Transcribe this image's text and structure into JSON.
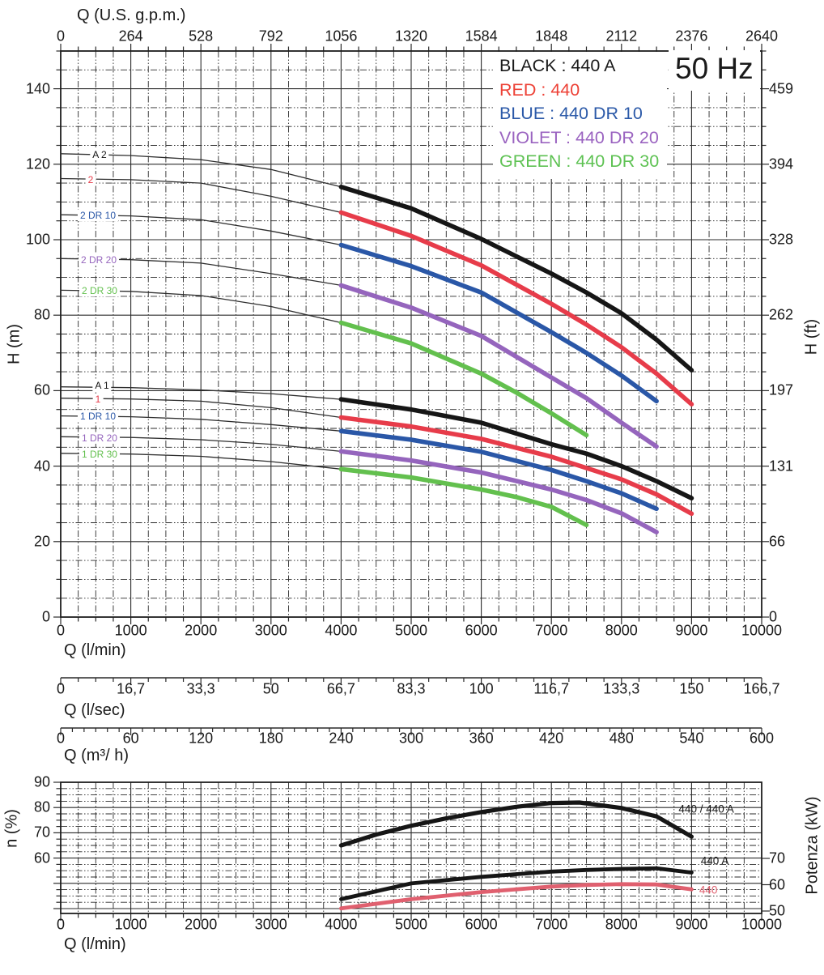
{
  "chart_data": [
    {
      "type": "line",
      "name": "head-capacity curves",
      "axes": {
        "top": {
          "title": "Q (U.S. g.p.m.)",
          "ticks": [
            "0",
            "264",
            "528",
            "792",
            "1056",
            "1320",
            "1584",
            "1848",
            "2112",
            "2376",
            "2640"
          ]
        },
        "bottom": {
          "title": "Q (l/min)",
          "ticks": [
            "0",
            "1000",
            "2000",
            "3000",
            "4000",
            "5000",
            "6000",
            "7000",
            "8000",
            "9000",
            "10000"
          ]
        },
        "left": {
          "title": "H (m)",
          "ticks": [
            "140",
            "120",
            "100",
            "80",
            "60",
            "40",
            "20",
            "0"
          ],
          "min": 0,
          "max": 150
        },
        "right": {
          "title": "H (ft)",
          "ticks": [
            "459",
            "394",
            "328",
            "262",
            "197",
            "131",
            "66",
            "0"
          ]
        },
        "x_min": 0,
        "x_max": 10000
      },
      "legend": {
        "frequency": "50 Hz",
        "entries": [
          {
            "label": "BLACK : 440 A",
            "color": "#1a1a1a"
          },
          {
            "label": "RED : 440",
            "color": "#ed4136"
          },
          {
            "label": "BLUE : 440 DR 10",
            "color": "#2b59a8"
          },
          {
            "label": "VIOLET : 440 DR 20",
            "color": "#9a63c0"
          },
          {
            "label": "GREEN : 440 DR 30",
            "color": "#5ec253"
          }
        ]
      },
      "series": [
        {
          "model": "440 A",
          "label": "A 2",
          "color": "#161616",
          "label_at": [
            554,
            122.5
          ],
          "lead": [
            [
              0,
              122.8
            ],
            [
              1000,
              122.3
            ],
            [
              2000,
              121.2
            ],
            [
              3000,
              118.6
            ],
            [
              4000,
              114
            ]
          ],
          "points": [
            [
              4000,
              114
            ],
            [
              5000,
              108.3
            ],
            [
              6000,
              100.2
            ],
            [
              7000,
              91
            ],
            [
              7500,
              86
            ],
            [
              8000,
              80.5
            ],
            [
              8500,
              73.5
            ],
            [
              9000,
              65.4
            ]
          ]
        },
        {
          "model": "440",
          "label": "2",
          "color": "#e73c4a",
          "label_at": [
            427,
            115.9
          ],
          "lead": [
            [
              0,
              116.2
            ],
            [
              1000,
              115.9
            ],
            [
              2000,
              115
            ],
            [
              3000,
              111.5
            ],
            [
              4000,
              107.2
            ]
          ],
          "points": [
            [
              4000,
              107.2
            ],
            [
              5000,
              101
            ],
            [
              6000,
              93.2
            ],
            [
              7000,
              83
            ],
            [
              7500,
              77.5
            ],
            [
              8000,
              71.5
            ],
            [
              8500,
              64.5
            ],
            [
              9000,
              56.4
            ]
          ]
        },
        {
          "model": "440 DR 10",
          "label": "2 DR 10",
          "color": "#2a57a7",
          "label_at": [
            531,
            106.4
          ],
          "lead": [
            [
              0,
              106.6
            ],
            [
              1000,
              106.3
            ],
            [
              2000,
              105.3
            ],
            [
              3000,
              102.3
            ],
            [
              4000,
              98.6
            ]
          ],
          "points": [
            [
              4000,
              98.6
            ],
            [
              5000,
              93
            ],
            [
              6000,
              86
            ],
            [
              7000,
              75.5
            ],
            [
              7500,
              70
            ],
            [
              8000,
              64
            ],
            [
              8500,
              57.2
            ]
          ]
        },
        {
          "model": "440 DR 20",
          "label": "2 DR 20",
          "color": "#9565bd",
          "label_at": [
            543,
            94.6
          ],
          "lead": [
            [
              0,
              95
            ],
            [
              1000,
              94.7
            ],
            [
              2000,
              93.8
            ],
            [
              3000,
              91
            ],
            [
              4000,
              87.9
            ]
          ],
          "points": [
            [
              4000,
              87.9
            ],
            [
              5000,
              82
            ],
            [
              6000,
              74.5
            ],
            [
              7000,
              63.5
            ],
            [
              7500,
              58
            ],
            [
              8000,
              51.5
            ],
            [
              8500,
              45.2
            ]
          ]
        },
        {
          "model": "440 DR 30",
          "label": "2 DR 30",
          "color": "#63c04e",
          "label_at": [
            554,
            86.5
          ],
          "lead": [
            [
              0,
              86.6
            ],
            [
              1000,
              86.3
            ],
            [
              2000,
              85.2
            ],
            [
              3000,
              82.3
            ],
            [
              4000,
              78
            ]
          ],
          "points": [
            [
              4000,
              78
            ],
            [
              5000,
              72.5
            ],
            [
              6000,
              64.5
            ],
            [
              6500,
              59.5
            ],
            [
              7000,
              54
            ],
            [
              7500,
              48.2
            ]
          ]
        },
        {
          "model": "440 A",
          "label": "A 1",
          "color": "#161616",
          "label_at": [
            589,
            61.4
          ],
          "lead": [
            [
              0,
              61
            ],
            [
              1000,
              60.8
            ],
            [
              2000,
              60.2
            ],
            [
              3000,
              59.2
            ],
            [
              4000,
              57.7
            ]
          ],
          "points": [
            [
              4000,
              57.7
            ],
            [
              5000,
              55
            ],
            [
              6000,
              51.5
            ],
            [
              7000,
              45.8
            ],
            [
              7500,
              43.3
            ],
            [
              8000,
              40
            ],
            [
              8500,
              36
            ],
            [
              9000,
              31.5
            ]
          ]
        },
        {
          "model": "440",
          "label": "1",
          "color": "#e73c4a",
          "label_at": [
            531,
            57.7
          ],
          "lead": [
            [
              0,
              58
            ],
            [
              1000,
              57.8
            ],
            [
              2000,
              57.2
            ],
            [
              3000,
              55.5
            ],
            [
              4000,
              52.9
            ]
          ],
          "points": [
            [
              4000,
              52.9
            ],
            [
              5000,
              50.5
            ],
            [
              6000,
              47.2
            ],
            [
              7000,
              42.5
            ],
            [
              8000,
              36.5
            ],
            [
              8500,
              32.5
            ],
            [
              9000,
              27.4
            ]
          ]
        },
        {
          "model": "440 DR 10",
          "label": "1 DR 10",
          "color": "#2a57a7",
          "label_at": [
            531,
            53.2
          ],
          "lead": [
            [
              0,
              53.3
            ],
            [
              1000,
              53.1
            ],
            [
              2000,
              52.4
            ],
            [
              3000,
              51
            ],
            [
              4000,
              49.3
            ]
          ],
          "points": [
            [
              4000,
              49.3
            ],
            [
              5000,
              47
            ],
            [
              6000,
              43.8
            ],
            [
              7000,
              39
            ],
            [
              7500,
              36
            ],
            [
              8000,
              32.8
            ],
            [
              8500,
              28.7
            ]
          ]
        },
        {
          "model": "440 DR 20",
          "label": "1 DR 20",
          "color": "#9565bd",
          "label_at": [
            554,
            47.4
          ],
          "lead": [
            [
              0,
              47.8
            ],
            [
              1000,
              47.6
            ],
            [
              2000,
              47
            ],
            [
              3000,
              45.8
            ],
            [
              4000,
              43.9
            ]
          ],
          "points": [
            [
              4000,
              43.9
            ],
            [
              5000,
              41.5
            ],
            [
              6000,
              38.3
            ],
            [
              7000,
              33.8
            ],
            [
              7500,
              31
            ],
            [
              8000,
              27.5
            ],
            [
              8500,
              22.5
            ]
          ]
        },
        {
          "model": "440 DR 30",
          "label": "1 DR 30",
          "color": "#63c04e",
          "label_at": [
            554,
            43.1
          ],
          "lead": [
            [
              0,
              43.4
            ],
            [
              1000,
              43.2
            ],
            [
              2000,
              42.6
            ],
            [
              3000,
              41.2
            ],
            [
              4000,
              39.2
            ]
          ],
          "points": [
            [
              4000,
              39.2
            ],
            [
              5000,
              37
            ],
            [
              6000,
              33.8
            ],
            [
              6500,
              31.8
            ],
            [
              7000,
              29.2
            ],
            [
              7500,
              24.4
            ]
          ]
        }
      ]
    },
    {
      "type": "line",
      "name": "efficiency and power curves",
      "axes": {
        "bottom": {
          "title": "Q (l/min)",
          "ticks": [
            "0",
            "1000",
            "2000",
            "3000",
            "4000",
            "5000",
            "6000",
            "7000",
            "8000",
            "9000",
            "10000"
          ]
        },
        "left": {
          "title": "n (%)",
          "ticks": [
            "90",
            "80",
            "70",
            "60"
          ],
          "min": 38,
          "max": 90
        },
        "right": {
          "title": "Potenza (kW)",
          "ticks": [
            "70",
            "60",
            "50"
          ],
          "min": 49,
          "max": 99
        },
        "x_min": 0,
        "x_max": 10000
      },
      "series": [
        {
          "name": "efficiency 440 / 440 A",
          "axis": "percent",
          "color": "#161616",
          "label": "440 / 440 A",
          "label_at": [
            9210,
            79.4
          ],
          "points": [
            [
              4000,
              65
            ],
            [
              4500,
              69.3
            ],
            [
              5000,
              72.8
            ],
            [
              5500,
              75.7
            ],
            [
              6000,
              78.2
            ],
            [
              6500,
              80.3
            ],
            [
              7000,
              81.8
            ],
            [
              7400,
              82
            ],
            [
              8000,
              79.8
            ],
            [
              8500,
              76.5
            ],
            [
              9000,
              68.5
            ]
          ]
        },
        {
          "name": "power 440 A",
          "axis": "kw",
          "color": "#161616",
          "label": "440 A",
          "label_at": [
            9330,
            69.1
          ],
          "points": [
            [
              4000,
              54.5
            ],
            [
              5000,
              60.5
            ],
            [
              6000,
              63
            ],
            [
              7000,
              65
            ],
            [
              7500,
              65.6
            ],
            [
              8000,
              66
            ],
            [
              8500,
              66.2
            ],
            [
              9000,
              64.6
            ]
          ]
        },
        {
          "name": "power 440",
          "axis": "kw",
          "color": "#e0606f",
          "label": "440",
          "label_at": [
            9240,
            58
          ],
          "points": [
            [
              4000,
              51
            ],
            [
              5000,
              54.5
            ],
            [
              6000,
              57.2
            ],
            [
              7000,
              59.3
            ],
            [
              7500,
              59.9
            ],
            [
              8000,
              60.2
            ],
            [
              8500,
              60.1
            ],
            [
              9000,
              58.2
            ]
          ]
        }
      ]
    }
  ],
  "scale_bars": [
    {
      "title": "Q (l/sec)",
      "ticks": [
        "0",
        "16,7",
        "33,3",
        "50",
        "66,7",
        "83,3",
        "100",
        "116,7",
        "133,3",
        "150",
        "166,7"
      ]
    },
    {
      "title": "Q (m³/ h)",
      "ticks": [
        "0",
        "60",
        "120",
        "180",
        "240",
        "300",
        "360",
        "420",
        "480",
        "540",
        "600"
      ]
    }
  ]
}
